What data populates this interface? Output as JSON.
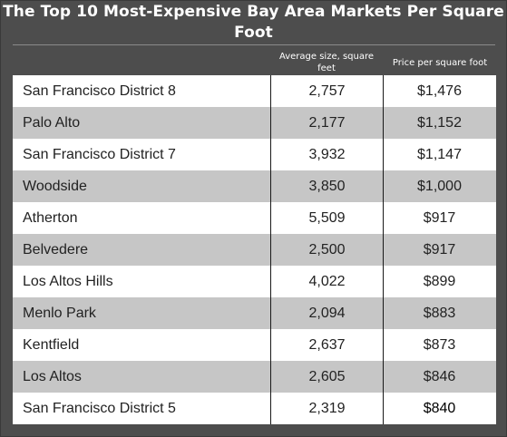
{
  "chart_data": {
    "type": "table",
    "title": "The Top 10 Most-Expensive Bay Area Markets Per Square Foot",
    "columns": [
      "",
      "Average size, square feet",
      "Price per square foot"
    ],
    "rows": [
      {
        "market": "San Francisco District 8",
        "avg_size": "2,757",
        "price": "$1,476"
      },
      {
        "market": "Palo Alto",
        "avg_size": "2,177",
        "price": "$1,152"
      },
      {
        "market": "San Francisco District 7",
        "avg_size": "3,932",
        "price": "$1,147"
      },
      {
        "market": "Woodside",
        "avg_size": "3,850",
        "price": "$1,000"
      },
      {
        "market": "Atherton",
        "avg_size": "5,509",
        "price": "$917"
      },
      {
        "market": "Belvedere",
        "avg_size": "2,500",
        "price": "$917"
      },
      {
        "market": "Los Altos Hills",
        "avg_size": "4,022",
        "price": "$899"
      },
      {
        "market": "Menlo Park",
        "avg_size": "2,094",
        "price": "$883"
      },
      {
        "market": "Kentfield",
        "avg_size": "2,637",
        "price": "$873"
      },
      {
        "market": "Los Altos",
        "avg_size": "2,605",
        "price": "$846"
      },
      {
        "market": "San Francisco District 5",
        "avg_size": "2,319",
        "price": "$840"
      }
    ]
  },
  "colors": {
    "panel_background": "#4d4d4d",
    "row_white": "#ffffff",
    "row_gray": "#c6c6c6",
    "grid_line": "#1a1a1a",
    "header_text": "#ffffff"
  }
}
